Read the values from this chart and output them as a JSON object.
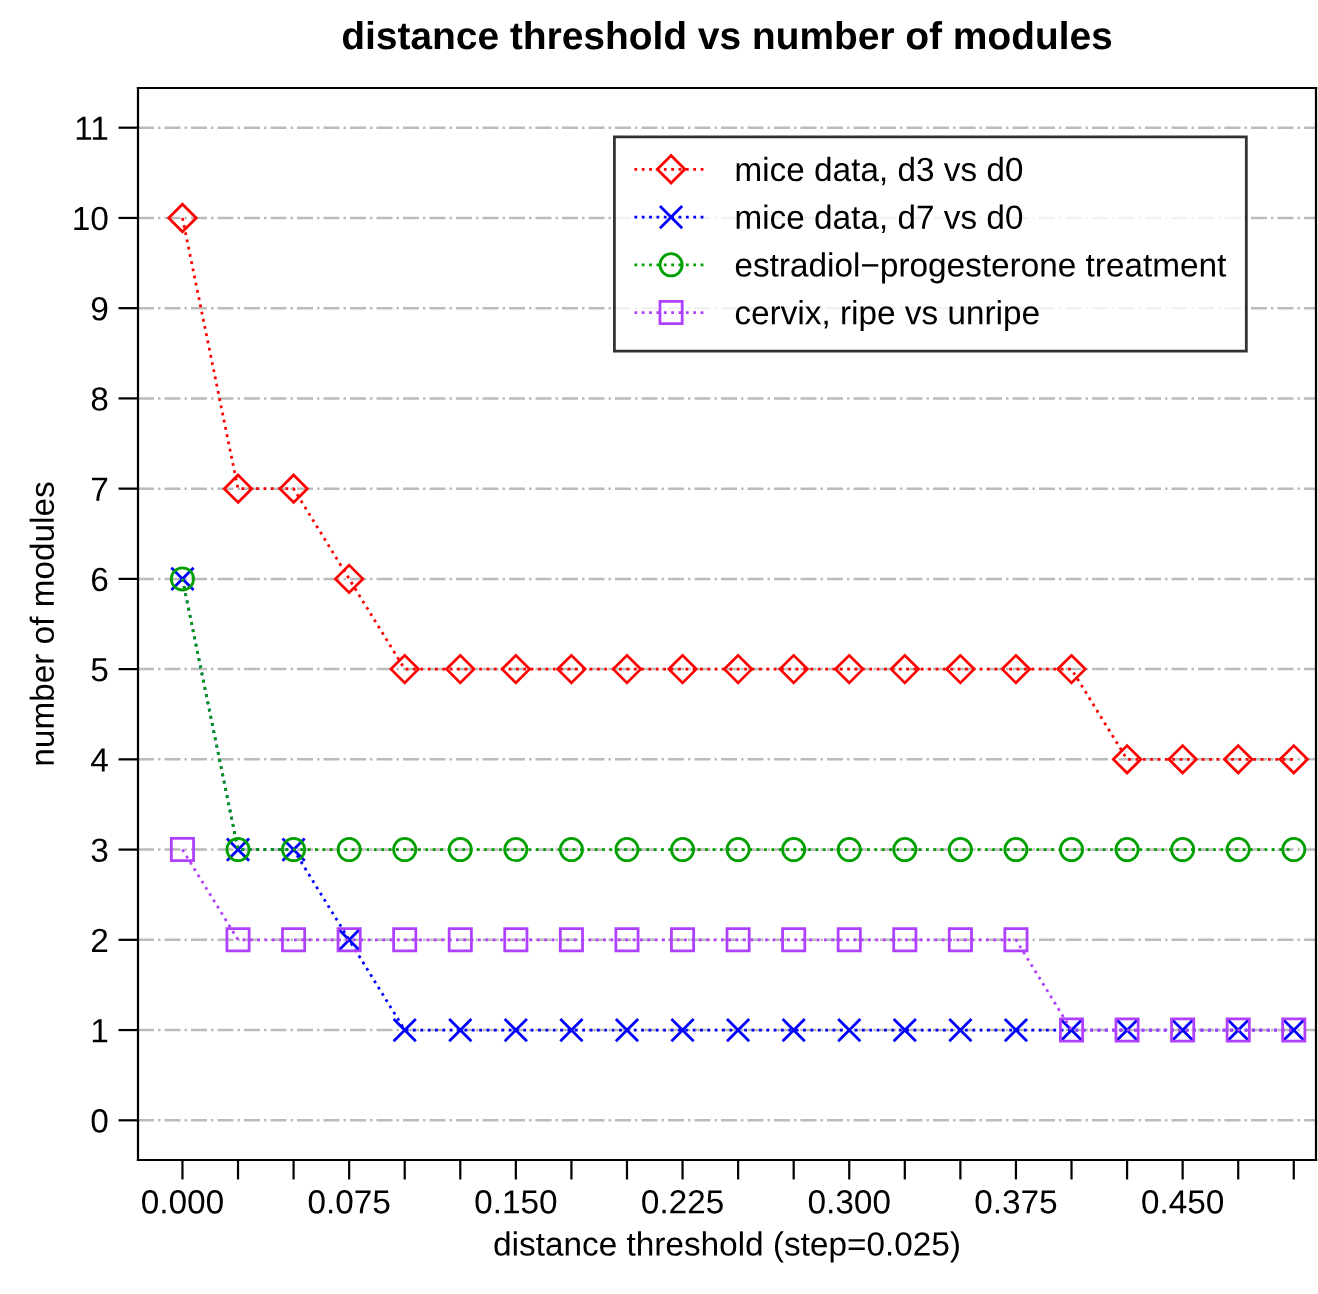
{
  "chart_data": {
    "type": "line",
    "title": "distance threshold vs number of modules",
    "xlabel": "distance threshold (step=0.025)",
    "ylabel": "number of modules",
    "x": [
      0.0,
      0.025,
      0.05,
      0.075,
      0.1,
      0.125,
      0.15,
      0.175,
      0.2,
      0.225,
      0.25,
      0.275,
      0.3,
      0.325,
      0.35,
      0.375,
      0.4,
      0.425,
      0.45,
      0.475,
      0.5
    ],
    "series": [
      {
        "name": "mice data, d3 vs d0",
        "color": "#ff0000",
        "marker": "diamond",
        "values": [
          10,
          7,
          7,
          6,
          5,
          5,
          5,
          5,
          5,
          5,
          5,
          5,
          5,
          5,
          5,
          5,
          5,
          4,
          4,
          4,
          4
        ]
      },
      {
        "name": "mice data, d7 vs d0",
        "color": "#0000ff",
        "marker": "cross",
        "values": [
          6,
          3,
          3,
          2,
          1,
          1,
          1,
          1,
          1,
          1,
          1,
          1,
          1,
          1,
          1,
          1,
          1,
          1,
          1,
          1,
          1
        ]
      },
      {
        "name": "estradiol−progesterone treatment",
        "color": "#00a000",
        "marker": "circle",
        "values": [
          6,
          3,
          3,
          3,
          3,
          3,
          3,
          3,
          3,
          3,
          3,
          3,
          3,
          3,
          3,
          3,
          3,
          3,
          3,
          3,
          3
        ]
      },
      {
        "name": "cervix, ripe vs unripe",
        "color": "#b040ff",
        "marker": "square",
        "values": [
          3,
          2,
          2,
          2,
          2,
          2,
          2,
          2,
          2,
          2,
          2,
          2,
          2,
          2,
          2,
          2,
          1,
          1,
          1,
          1,
          1
        ]
      }
    ],
    "line_style": "dotted",
    "grid": "y",
    "legend": "top right",
    "xlim": [
      -0.02,
      0.51
    ],
    "ylim": [
      -0.44,
      11.44
    ],
    "xticks": [
      {
        "value": 0.0,
        "label": "0.000"
      },
      {
        "value": 0.025,
        "label": null
      },
      {
        "value": 0.05,
        "label": null
      },
      {
        "value": 0.075,
        "label": "0.075"
      },
      {
        "value": 0.1,
        "label": null
      },
      {
        "value": 0.125,
        "label": null
      },
      {
        "value": 0.15,
        "label": "0.150"
      },
      {
        "value": 0.175,
        "label": null
      },
      {
        "value": 0.2,
        "label": null
      },
      {
        "value": 0.225,
        "label": "0.225"
      },
      {
        "value": 0.25,
        "label": null
      },
      {
        "value": 0.275,
        "label": null
      },
      {
        "value": 0.3,
        "label": "0.300"
      },
      {
        "value": 0.325,
        "label": null
      },
      {
        "value": 0.35,
        "label": null
      },
      {
        "value": 0.375,
        "label": "0.375"
      },
      {
        "value": 0.4,
        "label": null
      },
      {
        "value": 0.425,
        "label": null
      },
      {
        "value": 0.45,
        "label": "0.450"
      },
      {
        "value": 0.475,
        "label": null
      },
      {
        "value": 0.5,
        "label": null
      }
    ],
    "yticks": [
      0,
      1,
      2,
      3,
      4,
      5,
      6,
      7,
      8,
      9,
      10,
      11
    ]
  }
}
